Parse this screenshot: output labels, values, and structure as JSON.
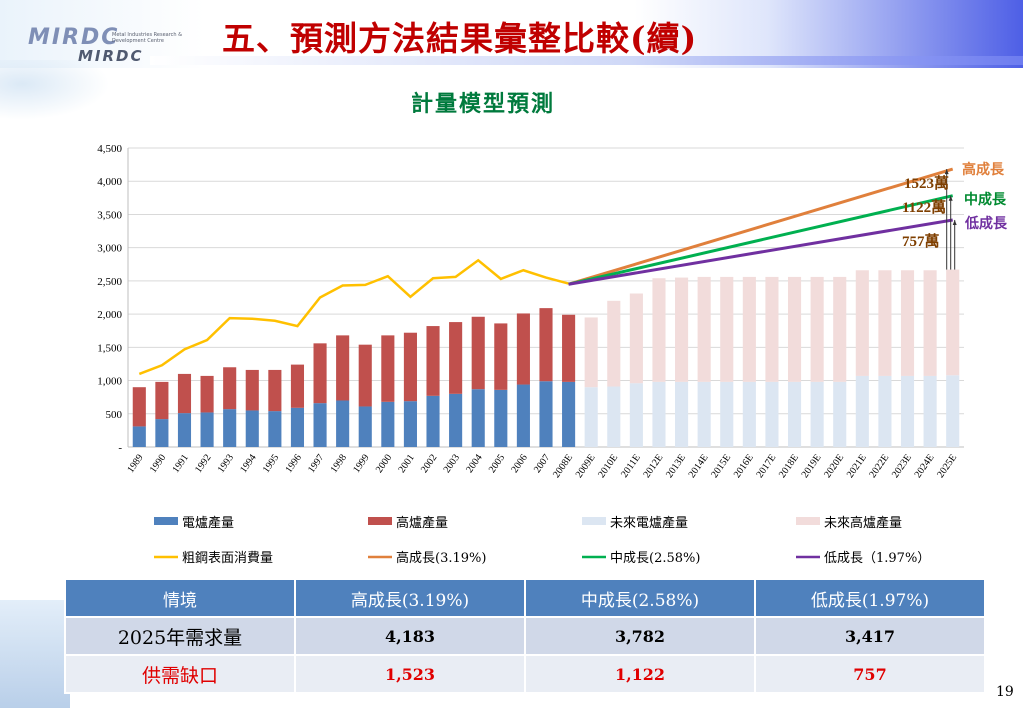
{
  "header": {
    "logo": "MIRDC",
    "logo_sub": "MIRDC",
    "logo_tag": "Metal Industries Research & Development Centre",
    "slide_title": "五、預測方法結果彙整比較(續)"
  },
  "chart_title": "計量模型預測",
  "page_number": "19",
  "colors": {
    "elec": "#4f81bd",
    "blast": "#c0504d",
    "future_elec": "#dce6f2",
    "future_blast": "#f2dcdb",
    "consumption": "#ffc000",
    "high": "#e0803c",
    "mid": "#00b050",
    "low": "#7030a0",
    "title_red": "#c00000",
    "title_green": "#007a3d"
  },
  "chart_data": {
    "type": "bar",
    "stacked": true,
    "categories": [
      "1989",
      "1990",
      "1991",
      "1992",
      "1993",
      "1994",
      "1995",
      "1996",
      "1997",
      "1998",
      "1999",
      "2000",
      "2001",
      "2002",
      "2003",
      "2004",
      "2005",
      "2006",
      "2007",
      "2008E",
      "2009E",
      "2010E",
      "2011E",
      "2012E",
      "2013E",
      "2014E",
      "2015E",
      "2016E",
      "2017E",
      "2018E",
      "2019E",
      "2020E",
      "2021E",
      "2022E",
      "2023E",
      "2024E",
      "2025E"
    ],
    "ylim": [
      0,
      4500
    ],
    "yticks": [
      "-",
      "500",
      "1,000",
      "1,500",
      "2,000",
      "2,500",
      "3,000",
      "3,500",
      "4,000",
      "4,500"
    ],
    "series": [
      {
        "name": "電爐產量",
        "kind": "bar",
        "values": [
          310,
          420,
          510,
          520,
          570,
          550,
          540,
          590,
          660,
          700,
          610,
          680,
          690,
          770,
          800,
          870,
          860,
          940,
          990,
          980,
          null,
          null,
          null,
          null,
          null,
          null,
          null,
          null,
          null,
          null,
          null,
          null,
          null,
          null,
          null,
          null,
          null
        ]
      },
      {
        "name": "高爐產量",
        "kind": "bar",
        "values": [
          590,
          560,
          590,
          550,
          630,
          610,
          620,
          650,
          900,
          980,
          930,
          1000,
          1030,
          1050,
          1080,
          1090,
          1000,
          1070,
          1100,
          1010,
          null,
          null,
          null,
          null,
          null,
          null,
          null,
          null,
          null,
          null,
          null,
          null,
          null,
          null,
          null,
          null,
          null
        ]
      },
      {
        "name": "未來電爐產量",
        "kind": "bar",
        "values": [
          null,
          null,
          null,
          null,
          null,
          null,
          null,
          null,
          null,
          null,
          null,
          null,
          null,
          null,
          null,
          null,
          null,
          null,
          null,
          null,
          900,
          910,
          960,
          980,
          980,
          980,
          980,
          980,
          980,
          980,
          980,
          980,
          1070,
          1070,
          1070,
          1070,
          1080
        ]
      },
      {
        "name": "未來高爐產量",
        "kind": "bar",
        "values": [
          null,
          null,
          null,
          null,
          null,
          null,
          null,
          null,
          null,
          null,
          null,
          null,
          null,
          null,
          null,
          null,
          null,
          null,
          null,
          null,
          1050,
          1290,
          1350,
          1560,
          1570,
          1580,
          1580,
          1580,
          1580,
          1580,
          1580,
          1580,
          1590,
          1590,
          1590,
          1590,
          1590
        ]
      },
      {
        "name": "粗鋼表面消費量",
        "kind": "line",
        "values": [
          1100,
          1230,
          1470,
          1610,
          1940,
          1930,
          1900,
          1820,
          2250,
          2430,
          2440,
          2570,
          2260,
          2540,
          2560,
          2810,
          2530,
          2660,
          2550,
          2460,
          null,
          null,
          null,
          null,
          null,
          null,
          null,
          null,
          null,
          null,
          null,
          null,
          null,
          null,
          null,
          null,
          null
        ]
      },
      {
        "name": "高成長(3.19%)",
        "kind": "line",
        "x_from": "2008E",
        "x_to": "2025E",
        "from": 2450,
        "to": 4183
      },
      {
        "name": "中成長(2.58%)",
        "kind": "line",
        "x_from": "2008E",
        "x_to": "2025E",
        "from": 2450,
        "to": 3782
      },
      {
        "name": "低成長（1.97%）",
        "kind": "line",
        "x_from": "2008E",
        "x_to": "2025E",
        "from": 2450,
        "to": 3417
      }
    ],
    "annotations": {
      "gap_high": "1523萬",
      "gap_mid": "1122萬",
      "gap_low": "757萬",
      "label_high": "高成長",
      "label_mid": "中成長",
      "label_low": "低成長"
    },
    "legend": [
      "電爐產量",
      "高爐產量",
      "未來電爐產量",
      "未來高爐產量",
      "粗鋼表面消費量",
      "高成長(3.19%)",
      "中成長(2.58%)",
      "低成長（1.97%）"
    ],
    "legend_position": "bottom"
  },
  "table": {
    "headers": [
      "情境",
      "高成長(3.19%)",
      "中成長(2.58%)",
      "低成長(1.97%)"
    ],
    "rows": [
      {
        "label": "2025年需求量",
        "values": [
          "4,183",
          "3,782",
          "3,417"
        ]
      },
      {
        "label": "供需缺口",
        "values": [
          "1,523",
          "1,122",
          "757"
        ]
      }
    ]
  }
}
